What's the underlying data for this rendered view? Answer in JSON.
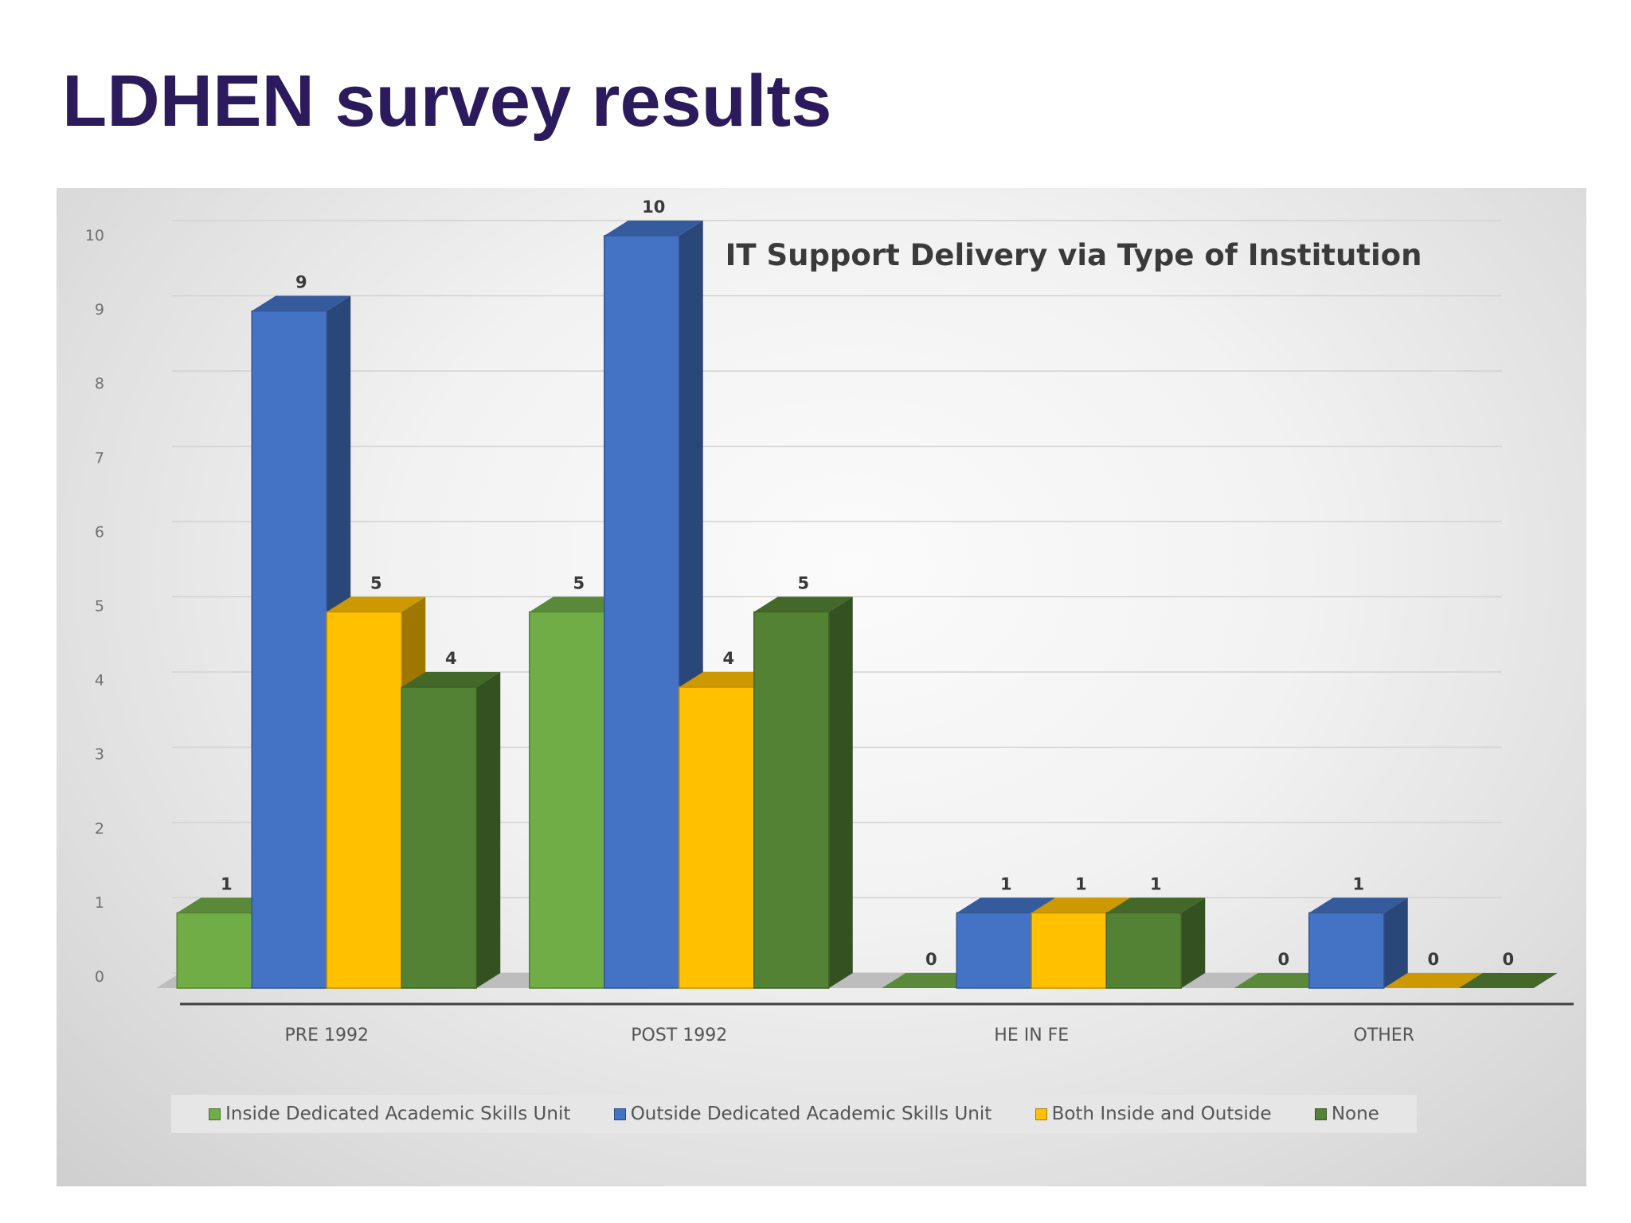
{
  "slide": {
    "title": "LDHEN survey results"
  },
  "chart_data": {
    "type": "bar",
    "title": "IT Support Delivery via Type of Institution",
    "categories": [
      "PRE 1992",
      "POST 1992",
      "HE IN FE",
      "OTHER"
    ],
    "series": [
      {
        "name": "Inside Dedicated Academic Skills Unit",
        "values": [
          1,
          5,
          0,
          0
        ],
        "color": "#70ad47"
      },
      {
        "name": "Outside Dedicated Academic Skills Unit",
        "values": [
          9,
          10,
          1,
          1
        ],
        "color": "#4472c4"
      },
      {
        "name": "Both Inside and Outside",
        "values": [
          5,
          4,
          1,
          0
        ],
        "color": "#ffc000"
      },
      {
        "name": "None",
        "values": [
          4,
          5,
          1,
          0
        ],
        "color": "#548235"
      }
    ],
    "ylim": [
      0,
      10
    ],
    "yticks": [
      "0",
      "1",
      "2",
      "3",
      "4",
      "5",
      "6",
      "7",
      "8",
      "9",
      "10"
    ],
    "xlabel": "",
    "ylabel": "",
    "grid": true,
    "legend_position": "bottom",
    "style": "3d clustered column"
  }
}
